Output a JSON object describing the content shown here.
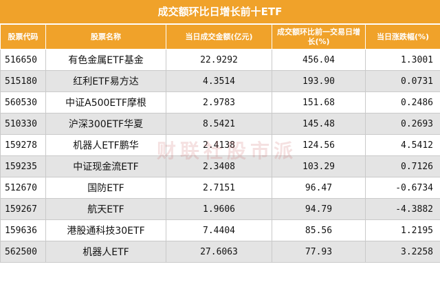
{
  "title": "成交额环比日增长前十ETF",
  "headers": [
    "股票代码",
    "股票名称",
    "当日成交金额(亿元)",
    "成交额环比前一交易日增长(%)",
    "当日涨跌幅(%)"
  ],
  "rows": [
    {
      "code": "516650",
      "name": "有色金属ETF基金",
      "amount": "22.9292",
      "growth": "456.04",
      "change": "1.3001"
    },
    {
      "code": "515180",
      "name": "红利ETF易方达",
      "amount": "4.3514",
      "growth": "193.90",
      "change": "0.0731"
    },
    {
      "code": "560530",
      "name": "中证A500ETF摩根",
      "amount": "2.9783",
      "growth": "151.68",
      "change": "0.2486"
    },
    {
      "code": "510330",
      "name": "沪深300ETF华夏",
      "amount": "8.5421",
      "growth": "145.48",
      "change": "0.2693"
    },
    {
      "code": "159278",
      "name": "机器人ETF鹏华",
      "amount": "2.4138",
      "growth": "124.56",
      "change": "4.5412"
    },
    {
      "code": "159235",
      "name": "中证现金流ETF",
      "amount": "2.3408",
      "growth": "103.29",
      "change": "0.7126"
    },
    {
      "code": "512670",
      "name": "国防ETF",
      "amount": "2.7151",
      "growth": "96.47",
      "change": "-0.6734"
    },
    {
      "code": "159267",
      "name": "航天ETF",
      "amount": "1.9606",
      "growth": "94.79",
      "change": "-4.3882"
    },
    {
      "code": "159636",
      "name": "港股通科技30ETF",
      "amount": "7.4404",
      "growth": "85.56",
      "change": "1.2195"
    },
    {
      "code": "562500",
      "name": "机器人ETF",
      "amount": "27.6063",
      "growth": "77.93",
      "change": "3.2258"
    }
  ],
  "watermark": "财联社股市派",
  "colors": {
    "header_bg": "#f0a22a",
    "header_text": "#ffffff",
    "alt_row_bg": "#e4e4e4"
  }
}
